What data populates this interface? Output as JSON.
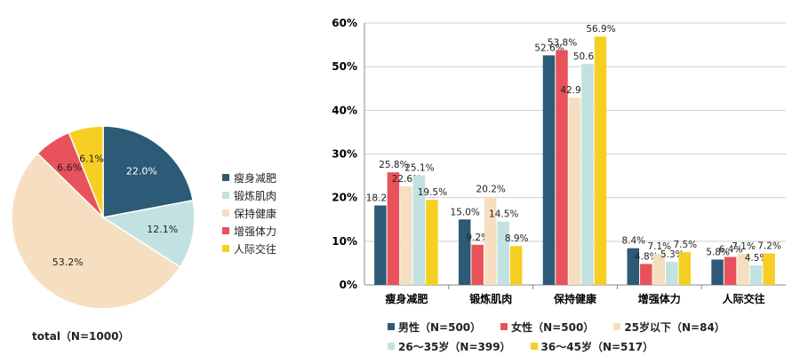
{
  "chart_data": [
    {
      "type": "pie",
      "total_label": "total（N=1000）",
      "slices": [
        {
          "label": "瘦身减肥",
          "value": 22.0,
          "display": "22.0%",
          "color": "#2c5a77"
        },
        {
          "label": "锻炼肌肉",
          "value": 12.1,
          "display": "12.1%",
          "color": "#c2e2e1"
        },
        {
          "label": "保持健康",
          "value": 53.2,
          "display": "53.2%",
          "color": "#f6dfc0"
        },
        {
          "label": "增强体力",
          "value": 6.6,
          "display": "6.6%",
          "color": "#e8525b"
        },
        {
          "label": "人际交往",
          "value": 6.1,
          "display": "6.1%",
          "color": "#f6cf22"
        }
      ]
    },
    {
      "type": "bar",
      "categories": [
        "瘦身减肥",
        "锻炼肌肉",
        "保持健康",
        "增强体力",
        "人际交往"
      ],
      "ylim": [
        0,
        60
      ],
      "yticks": [
        "0%",
        "10%",
        "20%",
        "30%",
        "40%",
        "50%",
        "60%"
      ],
      "grid": true,
      "series": [
        {
          "name": "男性（N=500）",
          "color": "#2c5a77",
          "values": [
            18.2,
            15.0,
            52.6,
            8.4,
            5.8
          ],
          "labels": [
            "18.2%",
            "15.0%",
            "52.6%",
            "8.4%",
            "5.8%"
          ]
        },
        {
          "name": "女性（N=500）",
          "color": "#e8525b",
          "values": [
            25.8,
            9.2,
            53.8,
            4.8,
            6.4
          ],
          "labels": [
            "25.8%",
            "9.2%",
            "53.8%",
            "4.8%",
            "6.4%"
          ]
        },
        {
          "name": "25岁以下（N=84）",
          "color": "#f6dfc0",
          "values": [
            22.6,
            20.2,
            42.9,
            7.1,
            7.1
          ],
          "labels": [
            "22.6%",
            "20.2%",
            "42.9%",
            "7.1%",
            "7.1%"
          ]
        },
        {
          "name": "26～35岁（N=399）",
          "color": "#c2e2e1",
          "values": [
            25.1,
            14.5,
            50.6,
            5.3,
            4.5
          ],
          "labels": [
            "25.1%",
            "14.5%",
            "50.6%",
            "5.3%",
            "4.5%"
          ]
        },
        {
          "name": "36～45岁（N=517）",
          "color": "#f6cf22",
          "values": [
            19.5,
            8.9,
            56.9,
            7.5,
            7.2
          ],
          "labels": [
            "19.5%",
            "8.9%",
            "56.9%",
            "7.5%",
            "7.2%"
          ]
        }
      ]
    }
  ]
}
